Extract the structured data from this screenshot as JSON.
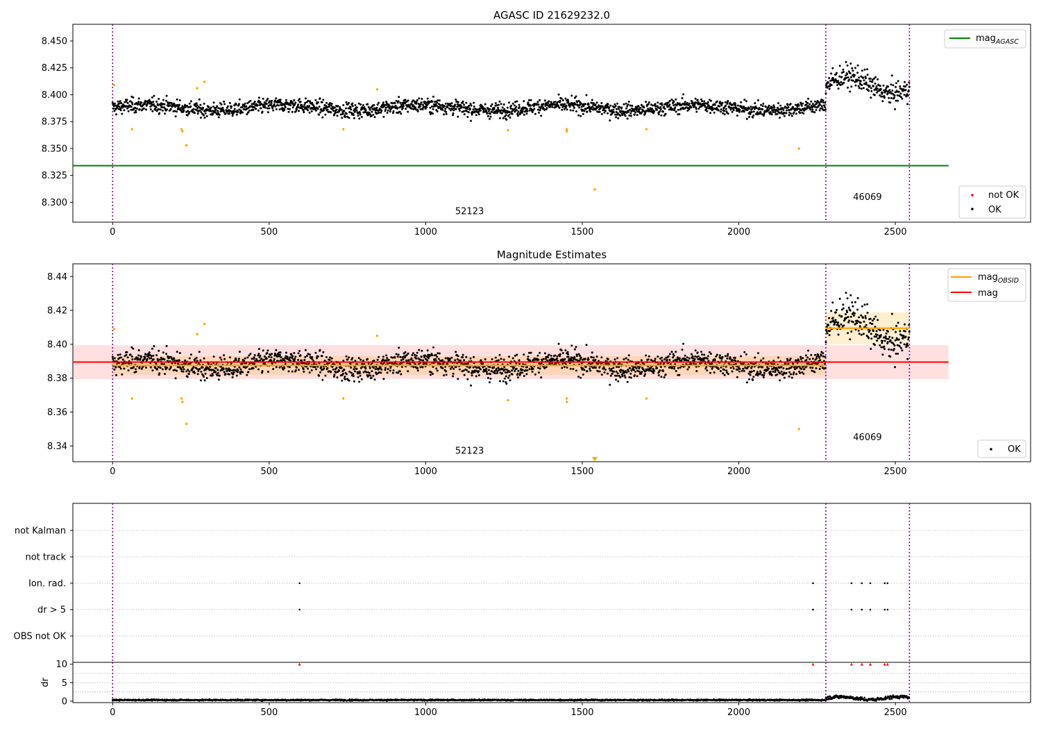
{
  "chart_data": [
    {
      "type": "scatter",
      "title": "AGASC ID 21629232.0",
      "xlim": [
        -127,
        2932
      ],
      "ylim": [
        8.2815,
        8.4655
      ],
      "x_ticks": [
        0,
        500,
        1000,
        1500,
        2000,
        2500
      ],
      "y_ticks": [
        8.3,
        8.325,
        8.35,
        8.375,
        8.4,
        8.425,
        8.45
      ],
      "y_tick_labels": [
        "8.300",
        "8.325",
        "8.350",
        "8.375",
        "8.400",
        "8.425",
        "8.450"
      ],
      "grid": false,
      "legend_top": {
        "placement": "top-right",
        "entries": [
          {
            "label": "mag",
            "sub": "AGASC",
            "color": "#008000",
            "marker": "line"
          }
        ]
      },
      "legend_bottom": {
        "placement": "lower-right",
        "entries": [
          {
            "label": "not OK",
            "color": "#ff0000",
            "marker": "dot"
          },
          {
            "label": "OK",
            "color": "#000000",
            "marker": "dot"
          }
        ]
      },
      "hline": {
        "name": "mag_AGASC",
        "y": 8.334,
        "x_end": 2670,
        "color": "#008000"
      },
      "obsid_boundaries": [
        0,
        2278,
        2545
      ],
      "segments": [
        {
          "obsid": "52123",
          "x_range": [
            0,
            2278
          ],
          "center": 8.388,
          "spread": 0.0055,
          "label_x": 1140,
          "label_y": 8.289
        },
        {
          "obsid": "46069",
          "x_range": [
            2278,
            2545
          ],
          "center": 8.409,
          "spread": 0.0085,
          "label_x": 2411,
          "label_y": 8.302
        }
      ],
      "outliers": [
        {
          "x": 5,
          "y": 8.409
        },
        {
          "x": 62,
          "y": 8.368
        },
        {
          "x": 220,
          "y": 8.368
        },
        {
          "x": 223,
          "y": 8.366
        },
        {
          "x": 236,
          "y": 8.353
        },
        {
          "x": 270,
          "y": 8.406
        },
        {
          "x": 293,
          "y": 8.412
        },
        {
          "x": 737,
          "y": 8.368
        },
        {
          "x": 845,
          "y": 8.405
        },
        {
          "x": 1263,
          "y": 8.367
        },
        {
          "x": 1450,
          "y": 8.368
        },
        {
          "x": 1451,
          "y": 8.366
        },
        {
          "x": 1540,
          "y": 8.312
        },
        {
          "x": 1705,
          "y": 8.368
        },
        {
          "x": 2192,
          "y": 8.35
        }
      ],
      "outlier_color": "#ffa500"
    },
    {
      "type": "scatter",
      "title": "Magnitude Estimates",
      "xlim": [
        -127,
        2932
      ],
      "ylim": [
        8.3307,
        8.4475
      ],
      "x_ticks": [
        0,
        500,
        1000,
        1500,
        2000,
        2500
      ],
      "y_ticks": [
        8.34,
        8.36,
        8.38,
        8.4,
        8.42,
        8.44
      ],
      "y_tick_labels": [
        "8.34",
        "8.36",
        "8.38",
        "8.40",
        "8.42",
        "8.44"
      ],
      "grid": false,
      "legend_top": {
        "placement": "top-right",
        "entries": [
          {
            "label": "mag",
            "sub": "OBSID",
            "color": "#ffa500",
            "marker": "line"
          },
          {
            "label": "mag",
            "color": "#ff0000",
            "marker": "line"
          }
        ]
      },
      "legend_bottom": {
        "placement": "lower-right",
        "entries": [
          {
            "label": "OK",
            "color": "#000000",
            "marker": "dot"
          }
        ]
      },
      "mag": {
        "y": 8.3895,
        "band": [
          8.3795,
          8.3995
        ],
        "x_end": 2670,
        "color": "#ff0000"
      },
      "mag_obsid": [
        {
          "obsid": "52123",
          "x_range": [
            0,
            2278
          ],
          "y": 8.3875,
          "band": [
            8.382,
            8.393
          ]
        },
        {
          "obsid": "46069",
          "x_range": [
            2278,
            2545
          ],
          "y": 8.4095,
          "band": [
            8.4,
            8.419
          ]
        }
      ],
      "obsid_boundaries": [
        0,
        2278,
        2545
      ],
      "segments": [
        {
          "obsid": "52123",
          "label_x": 1140,
          "label_y": 8.3355
        },
        {
          "obsid": "46069",
          "label_x": 2411,
          "label_y": 8.3435
        }
      ],
      "clipped_marker": {
        "x": 1540,
        "y": 8.3322
      },
      "outlier_color": "#ffa500"
    },
    {
      "type": "scatter",
      "xlim": [
        -127,
        2932
      ],
      "categories": [
        "not Kalman",
        "not track",
        "Ion. rad.",
        "dr > 5",
        "OBS not OK"
      ],
      "grid": true,
      "flag_events": {
        "Ion. rad.": [
          597,
          2237,
          2360,
          2393,
          2420,
          2466,
          2475
        ],
        "dr > 5": [
          597,
          2237,
          2360,
          2393,
          2420,
          2466,
          2475
        ]
      },
      "obsid_boundaries": [
        0,
        2278,
        2545
      ]
    },
    {
      "type": "scatter",
      "ylabel": "dr",
      "xlim": [
        -127,
        2932
      ],
      "ylim": [
        -0.4,
        10.5
      ],
      "x_ticks": [
        0,
        500,
        1000,
        1500,
        2000,
        2500
      ],
      "y_ticks": [
        0,
        5,
        10
      ],
      "grid": true,
      "dr_baseline": [
        {
          "x_range": [
            0,
            2278
          ],
          "y": 0.3
        },
        {
          "x_range": [
            2278,
            2545
          ],
          "y": 0.8
        }
      ],
      "clipped_points": {
        "y": 10,
        "x": [
          597,
          2237,
          2360,
          2393,
          2420,
          2466,
          2475
        ],
        "color": "#ff0000"
      },
      "obsid_boundaries": [
        0,
        2278,
        2545
      ]
    }
  ]
}
